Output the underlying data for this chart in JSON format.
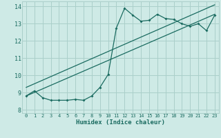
{
  "xlabel": "Humidex (Indice chaleur)",
  "bg_color": "#ceeae6",
  "grid_color": "#aacfca",
  "line_color": "#1a6b60",
  "xlim": [
    -0.5,
    23.5
  ],
  "ylim": [
    7.8,
    14.3
  ],
  "xticks": [
    0,
    1,
    2,
    3,
    4,
    5,
    6,
    7,
    8,
    9,
    10,
    11,
    12,
    13,
    14,
    15,
    16,
    17,
    18,
    19,
    20,
    21,
    22,
    23
  ],
  "yticks": [
    8,
    9,
    10,
    11,
    12,
    13,
    14
  ],
  "data_x": [
    0,
    1,
    2,
    3,
    4,
    5,
    6,
    7,
    8,
    9,
    10,
    11,
    12,
    13,
    14,
    15,
    16,
    17,
    18,
    19,
    20,
    21,
    22,
    23
  ],
  "data_y": [
    8.8,
    9.1,
    8.7,
    8.55,
    8.55,
    8.55,
    8.6,
    8.55,
    8.8,
    9.3,
    10.05,
    12.75,
    13.9,
    13.5,
    13.15,
    13.2,
    13.55,
    13.3,
    13.25,
    13.0,
    12.85,
    13.0,
    12.6,
    13.5
  ],
  "trend1_x": [
    0,
    23
  ],
  "trend1_y": [
    8.8,
    13.55
  ],
  "trend2_x": [
    0,
    23
  ],
  "trend2_y": [
    9.3,
    14.1
  ]
}
